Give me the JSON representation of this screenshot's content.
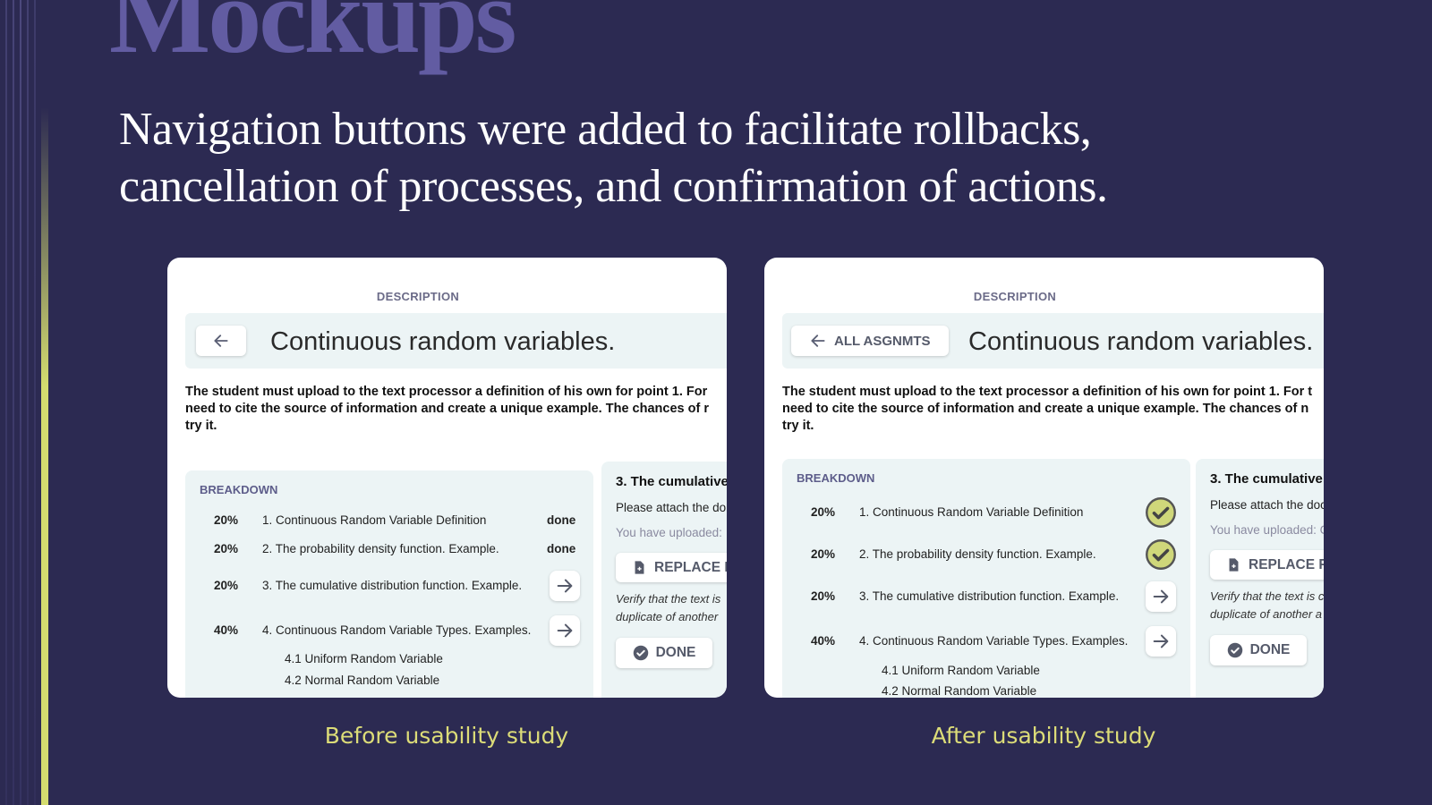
{
  "header": {
    "title": "Mockups",
    "subtitle_lines": [
      "Navigation buttons were added to facilitate rollbacks,",
      "cancellation of processes, and confirmation of actions."
    ]
  },
  "mockups": [
    {
      "caption": "Before usability study",
      "description_label": "DESCRIPTION",
      "title": "Continuous random variables.",
      "paragraph_lines": [
        "The student must upload to the text processor a definition of his own for point 1. For",
        "need to cite the source of information and create a unique example. The chances of r",
        "try it."
      ],
      "breakdown": {
        "label": "BREAKDOWN",
        "items": [
          {
            "percent": "20%",
            "text": "1. Continuous Random Variable Definition",
            "state": "done"
          },
          {
            "percent": "20%",
            "text": "2. The probability density function. Example.",
            "state": "done"
          },
          {
            "percent": "20%",
            "text": "3. The cumulative distribution function. Example.",
            "icon": "arrow"
          },
          {
            "percent": "40%",
            "text": "4. Continuous Random Variable Types. Examples.",
            "icon": "arrow",
            "subitems": [
              "4.1 Uniform Random Variable",
              "4.2 Normal Random Variable"
            ]
          }
        ]
      },
      "panel": {
        "title": "3. The cumulative",
        "lines": [
          "Please attach the do",
          "You have uploaded:"
        ],
        "replace_button": "REPLACE F",
        "note_lines": [
          "Verify that the text is",
          "duplicate of another"
        ],
        "done_button": "DONE"
      }
    },
    {
      "caption": "After usability study",
      "description_label": "DESCRIPTION",
      "back_button": "ALL ASGNMTS",
      "title": "Continuous random variables.",
      "paragraph_lines": [
        "The student must upload to the text processor a definition of his own for point 1. For t",
        "need to cite the source of information and create a unique example. The chances of n",
        "try it."
      ],
      "breakdown": {
        "label": "BREAKDOWN",
        "items": [
          {
            "percent": "20%",
            "text": "1. Continuous Random Variable Definition",
            "icon": "check"
          },
          {
            "percent": "20%",
            "text": "2. The probability density function. Example.",
            "icon": "check"
          },
          {
            "percent": "20%",
            "text": "3. The cumulative distribution function. Example.",
            "icon": "arrow"
          },
          {
            "percent": "40%",
            "text": "4. Continuous Random Variable Types. Examples.",
            "icon": "arrow",
            "subitems": [
              "4.1 Uniform Random Variable",
              "4.2 Normal Random Variable"
            ]
          }
        ]
      },
      "panel": {
        "title": "3. The cumulative",
        "lines": [
          "Please attach the doc",
          "You have uploaded: C"
        ],
        "replace_button": "REPLACE FI",
        "note_lines": [
          "Verify that the text is c",
          "duplicate of another a"
        ],
        "done_button": "DONE"
      }
    }
  ]
}
